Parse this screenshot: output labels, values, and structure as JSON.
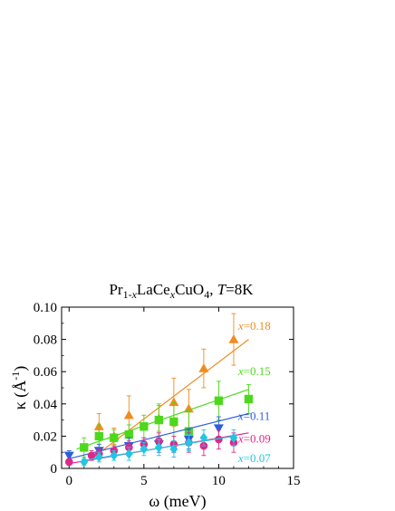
{
  "chart_data": {
    "type": "scatter",
    "title": {
      "prefix": "Pr",
      "sub1": "1-",
      "sub1_var": "x",
      "mid": "LaCe",
      "var_x": "x",
      "mid2": "CuO",
      "sub2": "4",
      "sep": ", ",
      "t_var": "T",
      "t_val": "=8K"
    },
    "xlabel": {
      "symbol": "ω",
      "unit": " (meV)"
    },
    "ylabel": {
      "symbol": "κ",
      "unit_prefix": " (Å",
      "unit_sup": "-1",
      "unit_suffix": ")"
    },
    "xlim": [
      -0.5,
      15
    ],
    "ylim": [
      0,
      0.1
    ],
    "xticks": [
      "0",
      "5",
      "10",
      "15"
    ],
    "yticks": [
      "0",
      "0.02",
      "0.04",
      "0.06",
      "0.08",
      "0.10"
    ],
    "xtick_values": [
      0,
      5,
      10,
      15
    ],
    "ytick_values": [
      0,
      0.02,
      0.04,
      0.06,
      0.08,
      0.1
    ],
    "grid": false,
    "series": [
      {
        "name": "x=0.18",
        "label_var": "x",
        "label_val": "=0.18",
        "color": "#f08c1e",
        "marker": "triangle-up",
        "points": [
          {
            "x": 2,
            "y": 0.026,
            "err": 0.008
          },
          {
            "x": 3,
            "y": 0.02,
            "err": 0.005
          },
          {
            "x": 4,
            "y": 0.033,
            "err": 0.012
          },
          {
            "x": 6,
            "y": 0.031,
            "err": 0.008
          },
          {
            "x": 7,
            "y": 0.041,
            "err": 0.015
          },
          {
            "x": 8,
            "y": 0.037,
            "err": 0.012
          },
          {
            "x": 9,
            "y": 0.062,
            "err": 0.012
          },
          {
            "x": 11,
            "y": 0.08,
            "err": 0.016
          }
        ],
        "fit": [
          [
            1.5,
            0.006
          ],
          [
            12,
            0.08
          ]
        ],
        "label_pos": [
          11.3,
          0.086
        ]
      },
      {
        "name": "x=0.15",
        "label_var": "x",
        "label_val": "=0.15",
        "color": "#4cd91c",
        "marker": "square",
        "points": [
          {
            "x": 1,
            "y": 0.013,
            "err": 0.006
          },
          {
            "x": 2,
            "y": 0.02,
            "err": 0.007
          },
          {
            "x": 3,
            "y": 0.019,
            "err": 0.005
          },
          {
            "x": 4,
            "y": 0.021,
            "err": 0.006
          },
          {
            "x": 5,
            "y": 0.026,
            "err": 0.007
          },
          {
            "x": 6,
            "y": 0.03,
            "err": 0.01
          },
          {
            "x": 7,
            "y": 0.029,
            "err": 0.012
          },
          {
            "x": 8,
            "y": 0.023,
            "err": 0.012
          },
          {
            "x": 10,
            "y": 0.042,
            "err": 0.012
          },
          {
            "x": 12,
            "y": 0.043,
            "err": 0.009
          }
        ],
        "fit": [
          [
            0.5,
            0.012
          ],
          [
            12,
            0.049
          ]
        ],
        "label_pos": [
          11.3,
          0.058
        ]
      },
      {
        "name": "x=0.11",
        "label_var": "x",
        "label_val": "=0.11",
        "color": "#2a5fd9",
        "marker": "triangle-down",
        "points": [
          {
            "x": 0,
            "y": 0.008,
            "err": 0.003
          },
          {
            "x": 2,
            "y": 0.011,
            "err": 0.004
          },
          {
            "x": 4,
            "y": 0.014,
            "err": 0.005
          },
          {
            "x": 6,
            "y": 0.015,
            "err": 0.005
          },
          {
            "x": 8,
            "y": 0.018,
            "err": 0.006
          },
          {
            "x": 10,
            "y": 0.025,
            "err": 0.007
          }
        ],
        "fit": [
          [
            0,
            0.006
          ],
          [
            12,
            0.034
          ]
        ],
        "label_pos": [
          11.3,
          0.03
        ]
      },
      {
        "name": "x=0.09",
        "label_var": "x",
        "label_val": "=0.09",
        "color": "#e0268a",
        "marker": "circle",
        "points": [
          {
            "x": 0,
            "y": 0.004,
            "err": 0.002
          },
          {
            "x": 1.5,
            "y": 0.008,
            "err": 0.003
          },
          {
            "x": 2,
            "y": 0.009,
            "err": 0.003
          },
          {
            "x": 3,
            "y": 0.011,
            "err": 0.003
          },
          {
            "x": 4,
            "y": 0.013,
            "err": 0.004
          },
          {
            "x": 5,
            "y": 0.015,
            "err": 0.004
          },
          {
            "x": 6,
            "y": 0.017,
            "err": 0.005
          },
          {
            "x": 7,
            "y": 0.015,
            "err": 0.005
          },
          {
            "x": 8,
            "y": 0.016,
            "err": 0.006
          },
          {
            "x": 9,
            "y": 0.014,
            "err": 0.006
          },
          {
            "x": 10,
            "y": 0.018,
            "err": 0.006
          },
          {
            "x": 11,
            "y": 0.016,
            "err": 0.006
          }
        ],
        "fit": [
          [
            0,
            0.003
          ],
          [
            12,
            0.022
          ]
        ],
        "label_pos": [
          11.3,
          0.016
        ]
      },
      {
        "name": "x=0.07",
        "label_var": "x",
        "label_val": "=0.07",
        "color": "#22c6e3",
        "marker": "diamond",
        "points": [
          {
            "x": 1,
            "y": 0.004,
            "err": 0.002
          },
          {
            "x": 2,
            "y": 0.007,
            "err": 0.003
          },
          {
            "x": 3,
            "y": 0.008,
            "err": 0.003
          },
          {
            "x": 4,
            "y": 0.009,
            "err": 0.004
          },
          {
            "x": 5,
            "y": 0.012,
            "err": 0.004
          },
          {
            "x": 6,
            "y": 0.013,
            "err": 0.005
          },
          {
            "x": 7,
            "y": 0.012,
            "err": 0.005
          },
          {
            "x": 8,
            "y": 0.016,
            "err": 0.005
          },
          {
            "x": 9,
            "y": 0.019,
            "err": 0.005
          },
          {
            "x": 11,
            "y": 0.019,
            "err": 0.005
          }
        ],
        "fit": [
          [
            1,
            0.005
          ],
          [
            11,
            0.02
          ]
        ],
        "label_pos": [
          11.3,
          0.004
        ]
      }
    ]
  }
}
